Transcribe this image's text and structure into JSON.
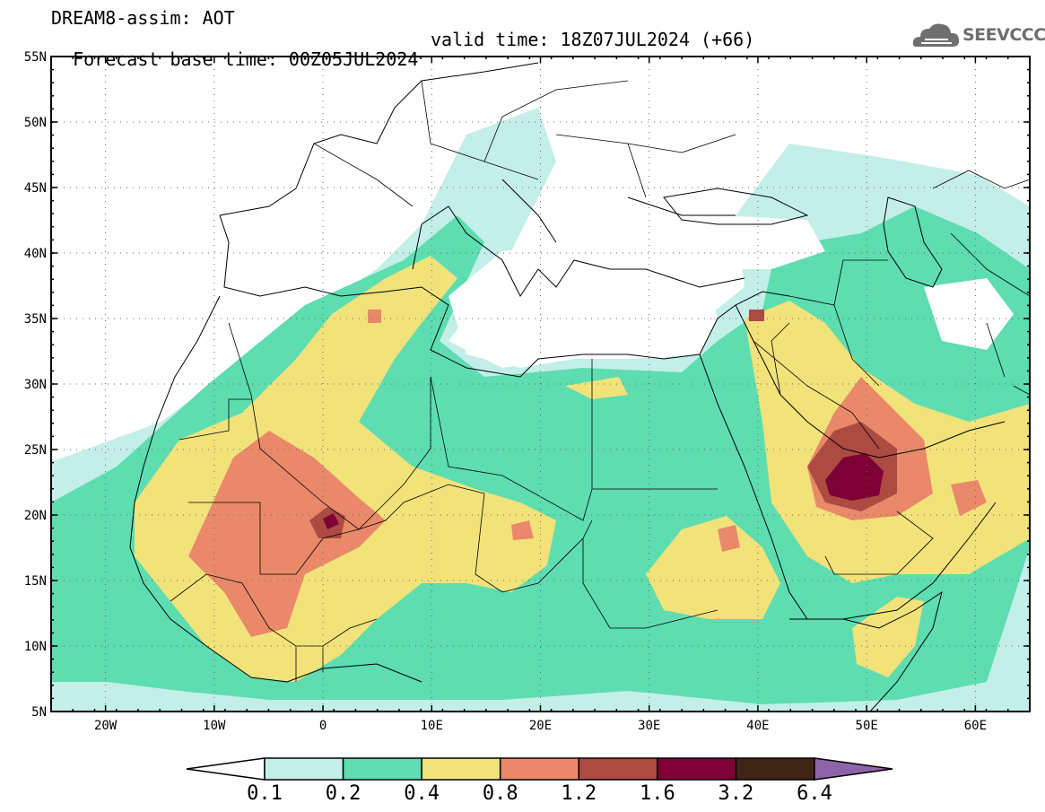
{
  "header": {
    "line1": "DREAM8-assim: AOT",
    "line2_base": "Forecast base time: 00Z05JUL2024",
    "line2_valid": "valid time: 18Z07JUL2024 (+66)"
  },
  "logo": {
    "text": "SEEVCCC",
    "icon": "cloud-icon"
  },
  "map": {
    "projection": "lat-lon",
    "lon_range": [
      -25,
      65
    ],
    "lat_range": [
      5,
      55
    ],
    "lat_labels": [
      "55N",
      "50N",
      "45N",
      "40N",
      "35N",
      "30N",
      "25N",
      "20N",
      "15N",
      "10N",
      "5N"
    ],
    "lon_labels": [
      "20W",
      "10W",
      "0",
      "10E",
      "20E",
      "30E",
      "40E",
      "50E",
      "60E"
    ],
    "gridlines": "dotted"
  },
  "colorbar": {
    "levels": [
      "0.1",
      "0.2",
      "0.4",
      "0.8",
      "1.2",
      "1.6",
      "3.2",
      "6.4"
    ],
    "colors": [
      "#c3efe8",
      "#5dddb0",
      "#f2e27a",
      "#e9896a",
      "#ad4a42",
      "#7f0034",
      "#3d2617",
      "#8e64a8"
    ],
    "under_color": "#ffffff"
  }
}
